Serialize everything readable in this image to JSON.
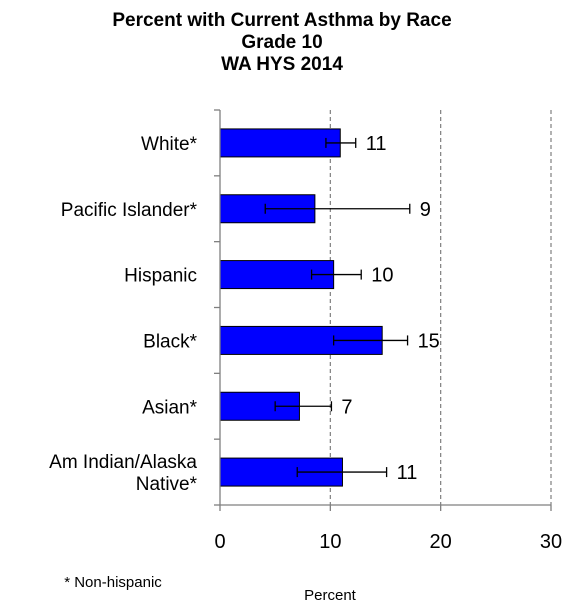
{
  "chart_data": {
    "type": "bar",
    "orientation": "horizontal",
    "title_lines": [
      "Percent with Current Asthma by Race",
      "Grade 10",
      "WA HYS 2014"
    ],
    "categories": [
      "White*",
      "Pacific Islander*",
      "Hispanic",
      "Black*",
      "Asian*",
      "Am Indian/Alaska Native*"
    ],
    "category_lines": [
      [
        "White*"
      ],
      [
        "Pacific Islander*"
      ],
      [
        "Hispanic"
      ],
      [
        "Black*"
      ],
      [
        "Asian*"
      ],
      [
        "Am Indian/Alaska",
        "Native*"
      ]
    ],
    "series": [
      {
        "values": [
          10.9,
          8.6,
          10.3,
          14.7,
          7.2,
          11.1
        ],
        "error_low": [
          9.6,
          4.1,
          8.3,
          10.3,
          5.0,
          7.0
        ],
        "error_high": [
          12.3,
          17.2,
          12.8,
          17.0,
          10.1,
          15.1
        ],
        "labels": [
          "11",
          "9",
          "10",
          "15",
          "7",
          "11"
        ],
        "color": "#0000ff"
      }
    ],
    "xlim": [
      0,
      30
    ],
    "xticks": [
      "0",
      "10",
      "20",
      "30"
    ],
    "xlabel": "Percent",
    "gridlines": "dashed vertical",
    "note": "* Non-hispanic"
  }
}
